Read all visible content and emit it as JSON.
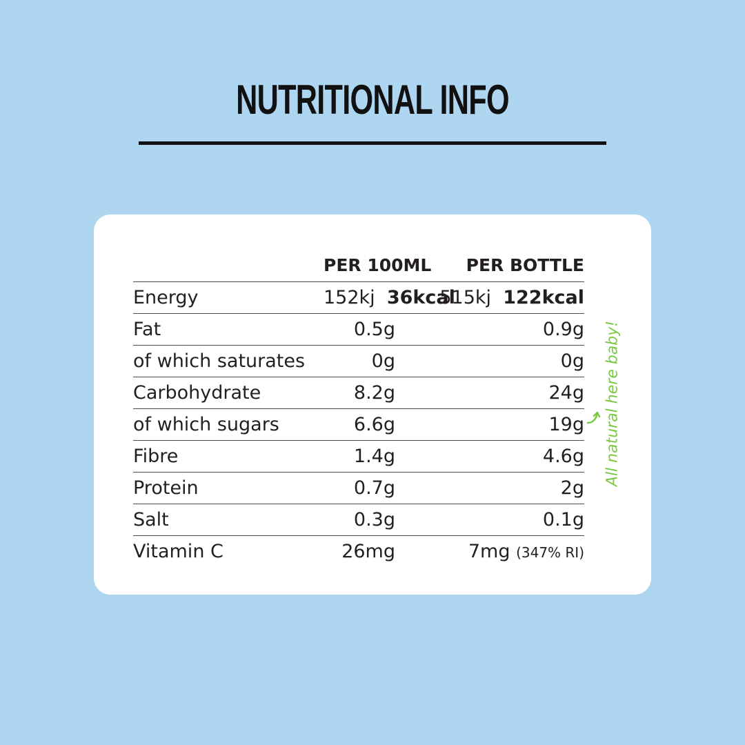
{
  "title": "NUTRITIONAL INFO",
  "table": {
    "headers": [
      "",
      "PER 100ML",
      "PER BOTTLE"
    ],
    "rows": [
      {
        "label": "Energy",
        "v1_kj": "152kj",
        "v1_kcal": "36kcal",
        "v2_kj": "515kj",
        "v2_kcal": "122kcal"
      },
      {
        "label": "Fat",
        "v1": "0.5g",
        "v2": "0.9g"
      },
      {
        "label": "of which saturates",
        "v1": "0g",
        "v2": "0g"
      },
      {
        "label": "Carbohydrate",
        "v1": "8.2g",
        "v2": "24g"
      },
      {
        "label": "of which sugars",
        "v1": "6.6g",
        "v2": "19g"
      },
      {
        "label": "Fibre",
        "v1": "1.4g",
        "v2": "4.6g"
      },
      {
        "label": "Protein",
        "v1": "0.7g",
        "v2": "2g"
      },
      {
        "label": "Salt",
        "v1": "0.3g",
        "v2": "0.1g"
      },
      {
        "label": "Vitamin C",
        "v1": "26mg",
        "v2": "7mg",
        "v2_note": "(347% RI)"
      }
    ]
  },
  "note": "All natural here baby!",
  "colors": {
    "background": "#aed6f1",
    "card": "#ffffff",
    "text": "#231f20",
    "note": "#7ac943"
  },
  "icons": {
    "arrow": "curved-arrow-icon"
  }
}
